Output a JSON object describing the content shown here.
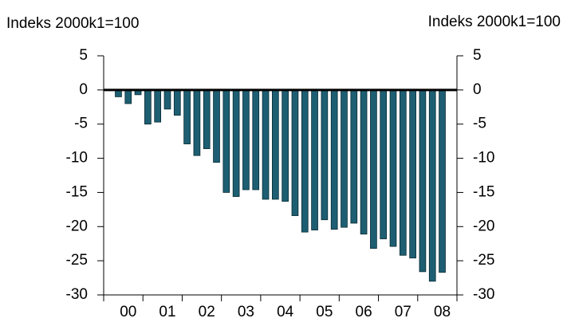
{
  "chart_data": {
    "type": "bar",
    "y_label": "Indeks 2000k1=100",
    "y2_label": "Indeks 2000k1=100",
    "categories": [
      null,
      null,
      "00",
      null,
      null,
      null,
      "01",
      null,
      null,
      null,
      "02",
      null,
      null,
      null,
      "03",
      null,
      null,
      null,
      "04",
      null,
      null,
      null,
      "05",
      null,
      null,
      null,
      "06",
      null,
      null,
      null,
      "07",
      null,
      null,
      null,
      "08",
      null
    ],
    "values": [
      0,
      -1,
      -2,
      -0.7,
      -5,
      -4.7,
      -2.8,
      -3.7,
      -7.9,
      -9.6,
      -8.6,
      -10.6,
      -15,
      -15.6,
      -14.6,
      -14.6,
      -16,
      -16,
      -16.3,
      -18.4,
      -20.8,
      -20.5,
      -19,
      -20.4,
      -20.1,
      -19.5,
      -21.1,
      -23.2,
      -21.8,
      -22.9,
      -24.2,
      -24.6,
      -26.6,
      -28,
      -26.7,
      null
    ],
    "color": "#1d5e72",
    "ylim": [
      -30,
      5
    ],
    "yticks": [
      5,
      0,
      -5,
      -10,
      -15,
      -20,
      -25,
      -30
    ],
    "y2lim": [
      -30,
      5
    ],
    "y2ticks": [
      5,
      0,
      -5,
      -10,
      -15,
      -20,
      -25,
      -30
    ]
  }
}
